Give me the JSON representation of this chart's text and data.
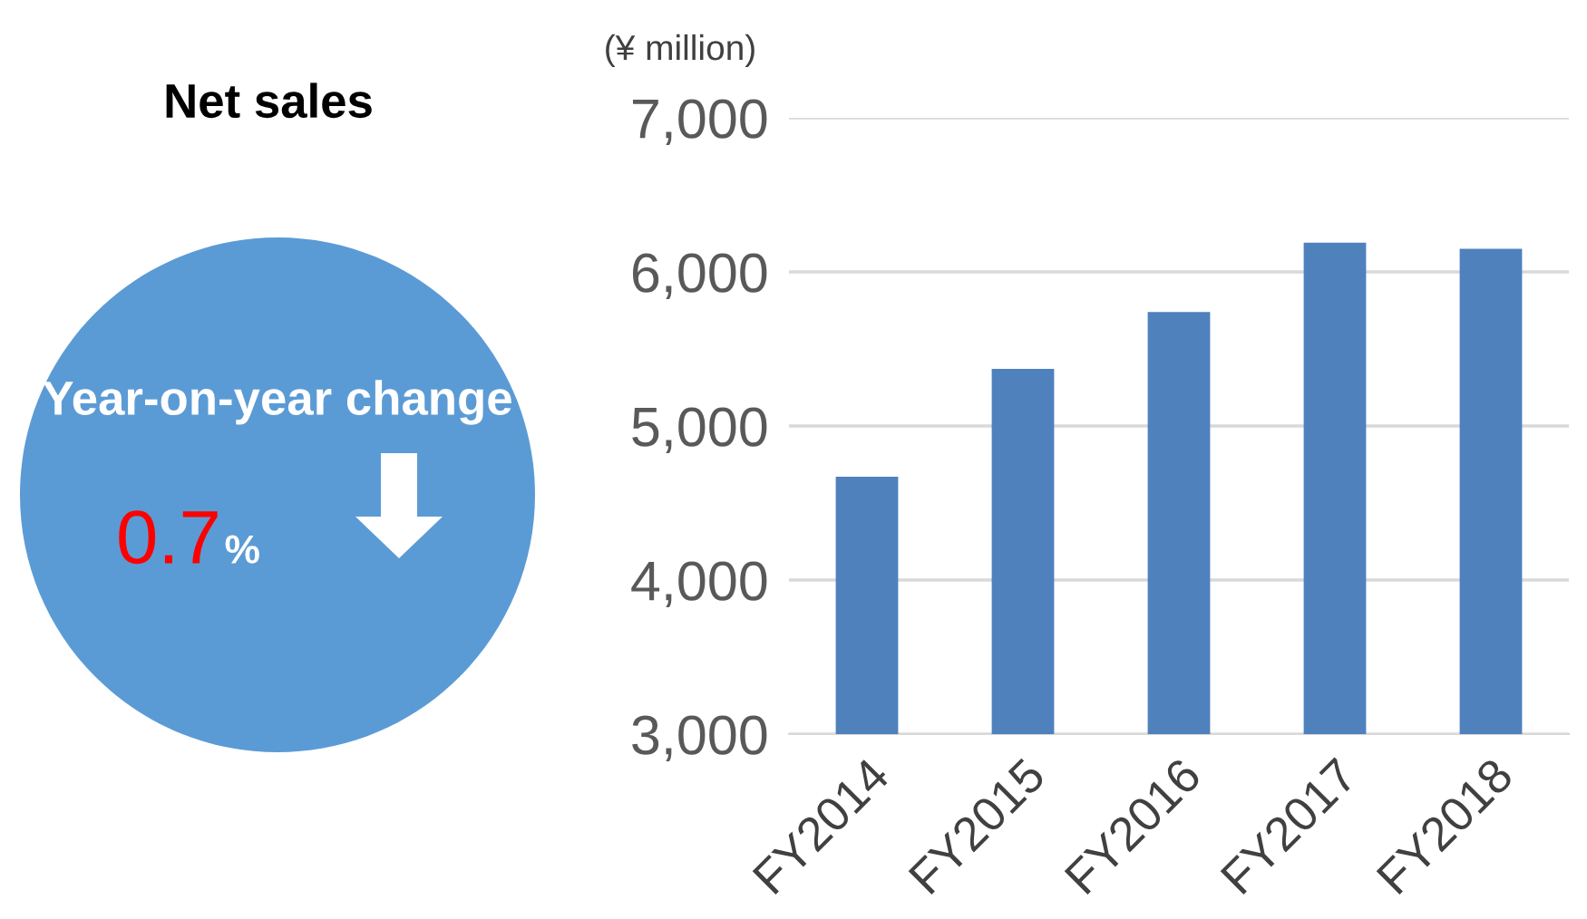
{
  "chart_data": [
    {
      "type": "other",
      "title": "Net sales",
      "annotations": [
        "Year-on-year change",
        "0.7",
        "%"
      ]
    },
    {
      "type": "bar",
      "ylabel": "(¥ million)",
      "categories": [
        "FY2014",
        "FY2015",
        "FY2016",
        "FY2017",
        "FY2018"
      ],
      "values": [
        4670,
        5370,
        5740,
        6190,
        6150
      ],
      "color": "#4f81bd",
      "ylim": [
        3000,
        7000
      ],
      "yticks": [
        {
          "value": 3000,
          "label": "3,000"
        },
        {
          "value": 4000,
          "label": "4,000"
        },
        {
          "value": 5000,
          "label": "5,000"
        },
        {
          "value": 6000,
          "label": "6,000"
        },
        {
          "value": 7000,
          "label": "7,000"
        }
      ],
      "grid": "y",
      "legend": false
    }
  ]
}
